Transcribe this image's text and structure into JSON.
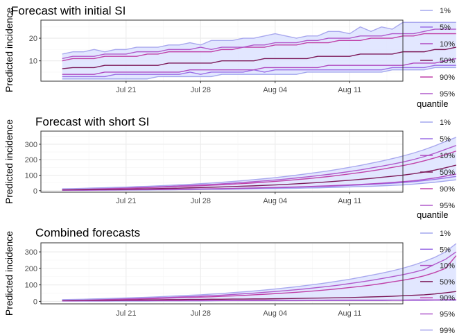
{
  "chart_data": [
    {
      "type": "line",
      "title": "Forecast with initial SI",
      "ylabel": "Predicted incidence",
      "xlabel": "",
      "x_start": "2020-07-15",
      "x_ticks": [
        "Jul 21",
        "Jul 28",
        "Aug 04",
        "Aug 11"
      ],
      "x_tick_dates": [
        "2020-07-21",
        "2020-07-28",
        "2020-08-04",
        "2020-08-11"
      ],
      "xlim": [
        "2020-07-13",
        "2020-08-16"
      ],
      "ylim": [
        1,
        28
      ],
      "y_ticks": [
        10,
        20
      ],
      "grid": true,
      "series": [
        {
          "name": "1%",
          "values": [
            2,
            2,
            2,
            2,
            2,
            2,
            2,
            2,
            2,
            3,
            3,
            3,
            3,
            3,
            3,
            4,
            4,
            4,
            4,
            4,
            4,
            4,
            4,
            5,
            5,
            5,
            5,
            5,
            5,
            5,
            5,
            6,
            6,
            6,
            6,
            7,
            7,
            7
          ]
        },
        {
          "name": "5%",
          "values": [
            3,
            3,
            3,
            3,
            3,
            4,
            4,
            4,
            4,
            4,
            4,
            4,
            5,
            4,
            5,
            5,
            5,
            5,
            6,
            5,
            6,
            6,
            6,
            6,
            6,
            6,
            6,
            6,
            6,
            6,
            6,
            7,
            7,
            7,
            7,
            8,
            8,
            8
          ]
        },
        {
          "name": "10%",
          "values": [
            4,
            4,
            4,
            4,
            5,
            5,
            5,
            5,
            5,
            5,
            5,
            5,
            6,
            6,
            6,
            6,
            6,
            6,
            6,
            7,
            7,
            7,
            7,
            7,
            7,
            8,
            8,
            8,
            8,
            8,
            8,
            8,
            8,
            9,
            9,
            9,
            10,
            11
          ]
        },
        {
          "name": "50%",
          "values": [
            6.5,
            7,
            7,
            7,
            8,
            8,
            8,
            8,
            8,
            8,
            9,
            9,
            9,
            9,
            9,
            10,
            10,
            10,
            10,
            11,
            11,
            11,
            11,
            11,
            12,
            12,
            12,
            12,
            13,
            13,
            13,
            13,
            14,
            14,
            14,
            15,
            15,
            16
          ]
        },
        {
          "name": "90%",
          "values": [
            10,
            11,
            11,
            11,
            12,
            12,
            12,
            12,
            13,
            13,
            14,
            14,
            14,
            14,
            14,
            15,
            15,
            16,
            16,
            16,
            17,
            17,
            17,
            18,
            18,
            18,
            19,
            19,
            19,
            20,
            20,
            20,
            21,
            21,
            22,
            22,
            22,
            22
          ]
        },
        {
          "name": "95%",
          "values": [
            11,
            12,
            12,
            12,
            13,
            13,
            13,
            14,
            14,
            14,
            15,
            15,
            15,
            16,
            15,
            16,
            16,
            16,
            17,
            17,
            18,
            18,
            18,
            19,
            19,
            20,
            20,
            20,
            21,
            21,
            21,
            22,
            22,
            22,
            23,
            24,
            24,
            24
          ]
        },
        {
          "name": "99%",
          "values": [
            13,
            14,
            14,
            15,
            14,
            15,
            15,
            16,
            16,
            16,
            17,
            17,
            18,
            17,
            19,
            19,
            19,
            20,
            20,
            21,
            22,
            21,
            20,
            21,
            21,
            23,
            23,
            22,
            25,
            23,
            25,
            24,
            27,
            27,
            27,
            27,
            27,
            27
          ]
        }
      ]
    },
    {
      "type": "line",
      "title": "Forecast with short SI",
      "ylabel": "Predicted incidence",
      "xlabel": "",
      "x_start": "2020-07-15",
      "x_ticks": [
        "Jul 21",
        "Jul 28",
        "Aug 04",
        "Aug 11"
      ],
      "x_tick_dates": [
        "2020-07-21",
        "2020-07-28",
        "2020-08-04",
        "2020-08-11"
      ],
      "xlim": [
        "2020-07-13",
        "2020-08-16"
      ],
      "ylim": [
        -10,
        385
      ],
      "y_ticks": [
        0,
        100,
        200,
        300
      ],
      "grid": true,
      "series": [
        {
          "name": "1%",
          "values": [
            2,
            2,
            2,
            3,
            3,
            3,
            4,
            4,
            4,
            5,
            5,
            6,
            6,
            7,
            8,
            8,
            9,
            10,
            11,
            12,
            13,
            14,
            15,
            17,
            18,
            20,
            22,
            24,
            26,
            28,
            31,
            34,
            37,
            42,
            48,
            54,
            62,
            70
          ]
        },
        {
          "name": "5%",
          "values": [
            3,
            3,
            3,
            4,
            4,
            5,
            5,
            6,
            6,
            7,
            7,
            8,
            9,
            10,
            11,
            12,
            13,
            14,
            15,
            17,
            18,
            20,
            22,
            24,
            26,
            28,
            31,
            34,
            37,
            40,
            44,
            48,
            52,
            58,
            65,
            73,
            82,
            92
          ]
        },
        {
          "name": "10%",
          "values": [
            3,
            3,
            4,
            4,
            5,
            5,
            6,
            6,
            7,
            8,
            8,
            9,
            10,
            11,
            12,
            13,
            14,
            16,
            17,
            19,
            20,
            22,
            24,
            26,
            29,
            31,
            34,
            37,
            40,
            44,
            48,
            53,
            58,
            64,
            72,
            82,
            94,
            107
          ]
        },
        {
          "name": "50%",
          "values": [
            5,
            6,
            6,
            7,
            8,
            9,
            10,
            11,
            12,
            13,
            15,
            16,
            18,
            20,
            22,
            24,
            26,
            29,
            31,
            34,
            37,
            40,
            44,
            48,
            52,
            57,
            62,
            67,
            73,
            79,
            86,
            93,
            100,
            109,
            120,
            133,
            148,
            165
          ]
        },
        {
          "name": "90%",
          "values": [
            9,
            10,
            11,
            12,
            13,
            15,
            16,
            18,
            20,
            22,
            24,
            27,
            29,
            32,
            35,
            38,
            42,
            46,
            50,
            55,
            60,
            65,
            71,
            77,
            84,
            91,
            99,
            108,
            117,
            127,
            138,
            150,
            162,
            176,
            193,
            212,
            233,
            256
          ]
        },
        {
          "name": "95%",
          "values": [
            10,
            11,
            12,
            14,
            15,
            17,
            19,
            21,
            23,
            25,
            28,
            31,
            34,
            37,
            40,
            44,
            48,
            53,
            58,
            63,
            69,
            75,
            82,
            89,
            97,
            105,
            114,
            124,
            134,
            146,
            158,
            171,
            185,
            201,
            220,
            242,
            267,
            292
          ]
        },
        {
          "name": "99%",
          "values": [
            12,
            13,
            15,
            17,
            19,
            21,
            23,
            26,
            28,
            31,
            34,
            38,
            41,
            45,
            49,
            54,
            59,
            65,
            71,
            77,
            84,
            92,
            100,
            109,
            118,
            128,
            139,
            151,
            163,
            177,
            191,
            207,
            224,
            243,
            265,
            290,
            318,
            345
          ]
        }
      ]
    },
    {
      "type": "line",
      "title": "Combined forecasts",
      "ylabel": "Predicted incidence",
      "xlabel": "",
      "x_start": "2020-07-15",
      "x_ticks": [
        "Jul 21",
        "Jul 28",
        "Aug 04",
        "Aug 11"
      ],
      "x_tick_dates": [
        "2020-07-21",
        "2020-07-28",
        "2020-08-04",
        "2020-08-11"
      ],
      "xlim": [
        "2020-07-13",
        "2020-08-16"
      ],
      "ylim": [
        -15,
        355
      ],
      "y_ticks": [
        0,
        100,
        200,
        300
      ],
      "grid": true,
      "series": [
        {
          "name": "1%",
          "values": [
            2,
            2,
            2,
            2,
            2,
            2,
            2,
            2,
            2,
            3,
            3,
            3,
            3,
            3,
            3,
            4,
            4,
            4,
            4,
            4,
            4,
            4,
            4,
            5,
            5,
            5,
            5,
            5,
            5,
            5,
            5,
            6,
            6,
            6,
            6,
            7,
            7,
            7
          ]
        },
        {
          "name": "5%",
          "values": [
            3,
            3,
            3,
            3,
            3,
            4,
            4,
            4,
            4,
            4,
            4,
            4,
            5,
            4,
            5,
            5,
            5,
            5,
            6,
            5,
            6,
            6,
            6,
            6,
            6,
            6,
            6,
            6,
            6,
            6,
            6,
            7,
            7,
            7,
            7,
            8,
            8,
            8
          ]
        },
        {
          "name": "10%",
          "values": [
            3,
            3,
            4,
            4,
            4,
            5,
            5,
            5,
            5,
            5,
            5,
            5,
            6,
            6,
            6,
            6,
            6,
            6,
            6,
            7,
            7,
            7,
            7,
            7,
            7,
            8,
            8,
            8,
            8,
            8,
            8,
            8,
            8,
            9,
            9,
            9,
            10,
            11
          ]
        },
        {
          "name": "50%",
          "values": [
            6,
            6,
            7,
            7,
            8,
            8,
            9,
            9,
            10,
            10,
            11,
            11,
            12,
            12,
            13,
            13,
            14,
            14,
            15,
            15,
            16,
            17,
            18,
            19,
            20,
            21,
            22,
            23,
            25,
            27,
            29,
            31,
            34,
            37,
            40,
            45,
            52,
            60
          ]
        },
        {
          "name": "90%",
          "values": [
            8,
            9,
            10,
            11,
            12,
            13,
            14,
            15,
            17,
            18,
            20,
            22,
            24,
            26,
            28,
            31,
            33,
            36,
            40,
            43,
            47,
            51,
            55,
            60,
            65,
            71,
            77,
            84,
            91,
            99,
            108,
            118,
            128,
            140,
            155,
            175,
            200,
            277
          ]
        },
        {
          "name": "95%",
          "values": [
            9,
            10,
            11,
            12,
            14,
            15,
            17,
            18,
            20,
            22,
            24,
            27,
            29,
            32,
            35,
            38,
            42,
            46,
            50,
            55,
            60,
            65,
            71,
            77,
            84,
            91,
            99,
            108,
            117,
            127,
            138,
            150,
            162,
            176,
            193,
            225,
            255,
            300
          ]
        },
        {
          "name": "99%",
          "values": [
            11,
            12,
            13,
            15,
            17,
            19,
            21,
            23,
            25,
            28,
            31,
            34,
            37,
            40,
            44,
            48,
            53,
            58,
            63,
            69,
            75,
            82,
            89,
            97,
            105,
            114,
            124,
            134,
            146,
            158,
            171,
            185,
            201,
            220,
            242,
            267,
            300,
            350
          ]
        }
      ]
    }
  ],
  "legend": {
    "title": "quantile",
    "panels": [
      {
        "title": "",
        "entries": [
          "1%",
          "5%",
          "10%",
          "50%",
          "90%",
          "95%"
        ]
      },
      {
        "title": "quantile",
        "entries": [
          "1%",
          "5%",
          "10%",
          "50%",
          "90%",
          "95%"
        ]
      },
      {
        "title": "quantile",
        "entries": [
          "1%",
          "5%",
          "10%",
          "50%",
          "90%",
          "95%",
          "99%"
        ]
      }
    ]
  },
  "colors": {
    "1%": "#a3a7ee",
    "5%": "#9b6ee6",
    "10%": "#b04ac0",
    "50%": "#7d1a5a",
    "90%": "#c041a8",
    "95%": "#b05acb",
    "99%": "#a9a8ee",
    "ribbon": "#dde3ff",
    "panel_border": "#333333",
    "grid_major": "#ebebeb",
    "grid_minor": "#f5f5f5",
    "axis_text": "#4d4d4d"
  }
}
